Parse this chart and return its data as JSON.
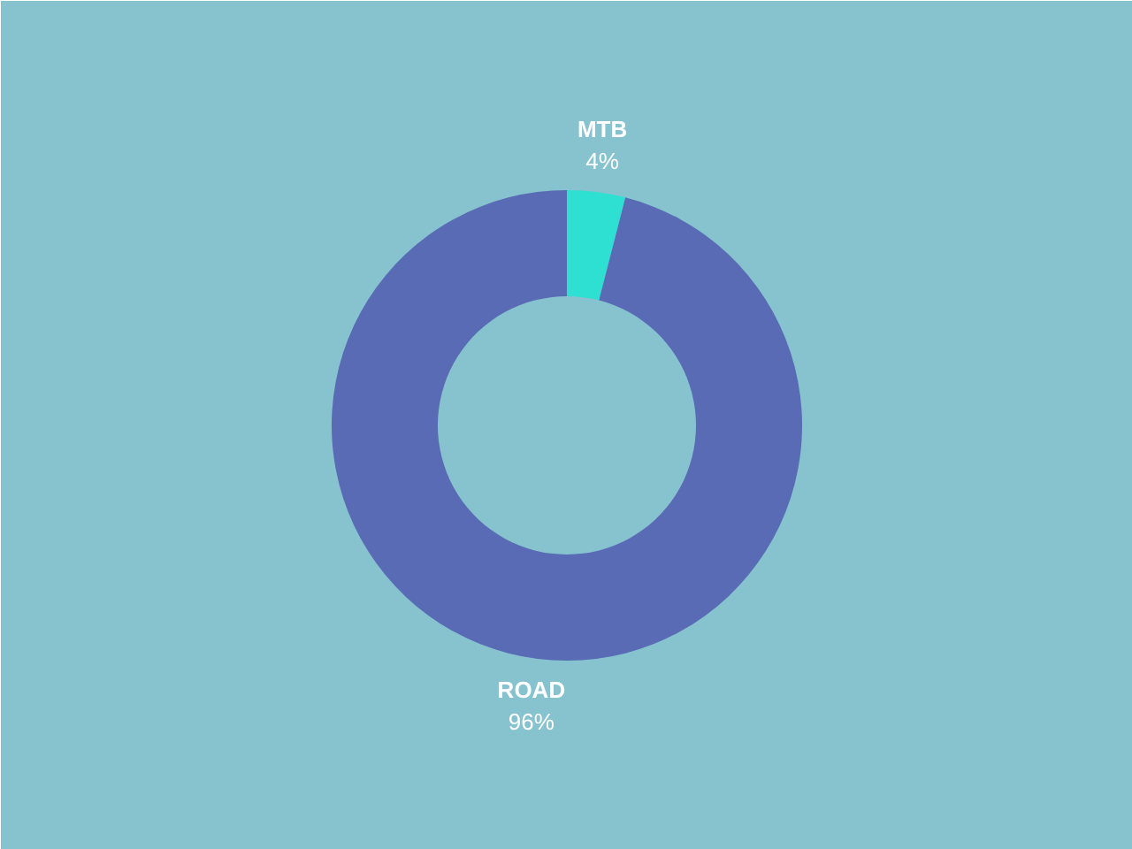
{
  "chart_data": {
    "type": "donut",
    "categories": [
      "MTB",
      "ROAD"
    ],
    "values": [
      4,
      96
    ],
    "colors": [
      "#2ee0d2",
      "#5a6bb5"
    ],
    "value_labels": [
      "4%",
      "96%"
    ]
  }
}
